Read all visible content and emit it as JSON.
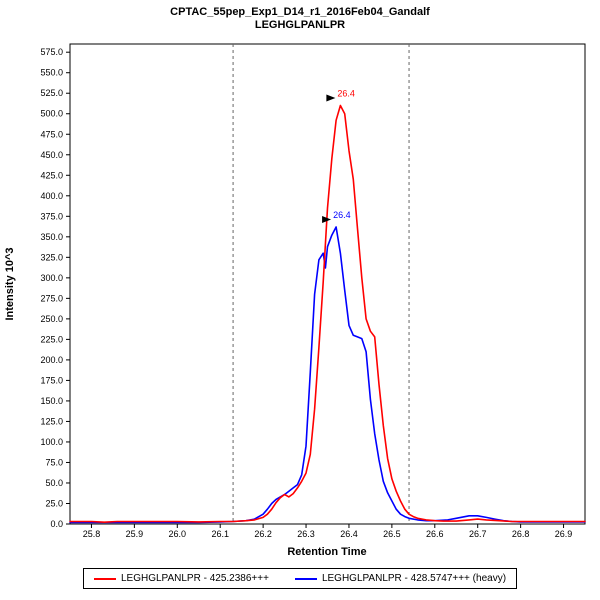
{
  "chart_data": {
    "type": "line",
    "title": "CPTAC_55pep_Exp1_D14_r1_2016Feb04_Gandalf",
    "subtitle": "LEGHGLPANLPR",
    "xlabel": "Retention Time",
    "ylabel": "Intensity 10^3",
    "xlim": [
      25.75,
      26.95
    ],
    "ylim": [
      0,
      585
    ],
    "x_ticks": [
      25.8,
      25.9,
      26.0,
      26.1,
      26.2,
      26.3,
      26.4,
      26.5,
      26.6,
      26.7,
      26.8,
      26.9
    ],
    "y_ticks": [
      0,
      25,
      50,
      75,
      100,
      125,
      150,
      175,
      200,
      225,
      250,
      275,
      300,
      325,
      350,
      375,
      400,
      425,
      450,
      475,
      500,
      525,
      550,
      575
    ],
    "grid": false,
    "legend_position": "bottom",
    "integration_boundaries": [
      26.13,
      26.54
    ],
    "boundary_color": "#666666",
    "axis_color": "#000000",
    "series": [
      {
        "name": "LEGHGLPANLPR - 425.2386+++",
        "color": "#ff0000",
        "peak_label": "26.4",
        "points": [
          [
            25.75,
            3
          ],
          [
            25.8,
            3
          ],
          [
            25.83,
            2.2
          ],
          [
            25.86,
            3
          ],
          [
            25.9,
            3
          ],
          [
            25.95,
            3
          ],
          [
            26.0,
            3
          ],
          [
            26.05,
            2.5
          ],
          [
            26.1,
            3
          ],
          [
            26.13,
            3
          ],
          [
            26.16,
            4
          ],
          [
            26.18,
            5
          ],
          [
            26.2,
            8
          ],
          [
            26.21,
            12
          ],
          [
            26.22,
            18
          ],
          [
            26.23,
            26
          ],
          [
            26.24,
            32
          ],
          [
            26.25,
            36
          ],
          [
            26.26,
            33
          ],
          [
            26.27,
            37
          ],
          [
            26.28,
            44
          ],
          [
            26.29,
            52
          ],
          [
            26.3,
            62
          ],
          [
            26.31,
            85
          ],
          [
            26.32,
            140
          ],
          [
            26.33,
            215
          ],
          [
            26.34,
            295
          ],
          [
            26.35,
            385
          ],
          [
            26.36,
            445
          ],
          [
            26.37,
            492
          ],
          [
            26.38,
            510
          ],
          [
            26.39,
            500
          ],
          [
            26.4,
            455
          ],
          [
            26.41,
            420
          ],
          [
            26.42,
            360
          ],
          [
            26.43,
            300
          ],
          [
            26.44,
            250
          ],
          [
            26.45,
            235
          ],
          [
            26.46,
            228
          ],
          [
            26.47,
            170
          ],
          [
            26.48,
            120
          ],
          [
            26.49,
            80
          ],
          [
            26.5,
            55
          ],
          [
            26.51,
            40
          ],
          [
            26.52,
            28
          ],
          [
            26.53,
            18
          ],
          [
            26.54,
            12
          ],
          [
            26.55,
            9
          ],
          [
            26.56,
            7
          ],
          [
            26.58,
            5
          ],
          [
            26.6,
            4
          ],
          [
            26.62,
            3.5
          ],
          [
            26.65,
            3.5
          ],
          [
            26.68,
            5
          ],
          [
            26.7,
            6
          ],
          [
            26.72,
            5
          ],
          [
            26.75,
            4
          ],
          [
            26.78,
            3
          ],
          [
            26.8,
            3
          ],
          [
            26.85,
            3
          ],
          [
            26.9,
            3
          ],
          [
            26.95,
            3
          ]
        ]
      },
      {
        "name": "LEGHGLPANLPR - 428.5747+++ (heavy)",
        "color": "#0000ff",
        "peak_label": "26.4",
        "points": [
          [
            25.75,
            2
          ],
          [
            25.8,
            2
          ],
          [
            25.9,
            2
          ],
          [
            26.0,
            2
          ],
          [
            26.05,
            2
          ],
          [
            26.1,
            2.5
          ],
          [
            26.13,
            3
          ],
          [
            26.16,
            4
          ],
          [
            26.18,
            6
          ],
          [
            26.2,
            12
          ],
          [
            26.21,
            18
          ],
          [
            26.22,
            25
          ],
          [
            26.23,
            30
          ],
          [
            26.24,
            33
          ],
          [
            26.25,
            36
          ],
          [
            26.26,
            40
          ],
          [
            26.27,
            44
          ],
          [
            26.28,
            48
          ],
          [
            26.29,
            60
          ],
          [
            26.3,
            95
          ],
          [
            26.31,
            185
          ],
          [
            26.32,
            280
          ],
          [
            26.33,
            322
          ],
          [
            26.34,
            330
          ],
          [
            26.345,
            312
          ],
          [
            26.35,
            338
          ],
          [
            26.36,
            352
          ],
          [
            26.37,
            362
          ],
          [
            26.38,
            330
          ],
          [
            26.39,
            285
          ],
          [
            26.4,
            242
          ],
          [
            26.41,
            230
          ],
          [
            26.42,
            228
          ],
          [
            26.43,
            226
          ],
          [
            26.44,
            210
          ],
          [
            26.45,
            152
          ],
          [
            26.46,
            110
          ],
          [
            26.47,
            78
          ],
          [
            26.48,
            52
          ],
          [
            26.49,
            38
          ],
          [
            26.5,
            28
          ],
          [
            26.51,
            18
          ],
          [
            26.52,
            12
          ],
          [
            26.53,
            9
          ],
          [
            26.54,
            7
          ],
          [
            26.56,
            5
          ],
          [
            26.58,
            4
          ],
          [
            26.6,
            4
          ],
          [
            26.63,
            5
          ],
          [
            26.65,
            7
          ],
          [
            26.68,
            10
          ],
          [
            26.7,
            10
          ],
          [
            26.72,
            8
          ],
          [
            26.74,
            6
          ],
          [
            26.76,
            4
          ],
          [
            26.78,
            3
          ],
          [
            26.8,
            2.5
          ],
          [
            26.85,
            2.5
          ],
          [
            26.9,
            2.5
          ],
          [
            26.95,
            2.5
          ]
        ]
      }
    ]
  }
}
